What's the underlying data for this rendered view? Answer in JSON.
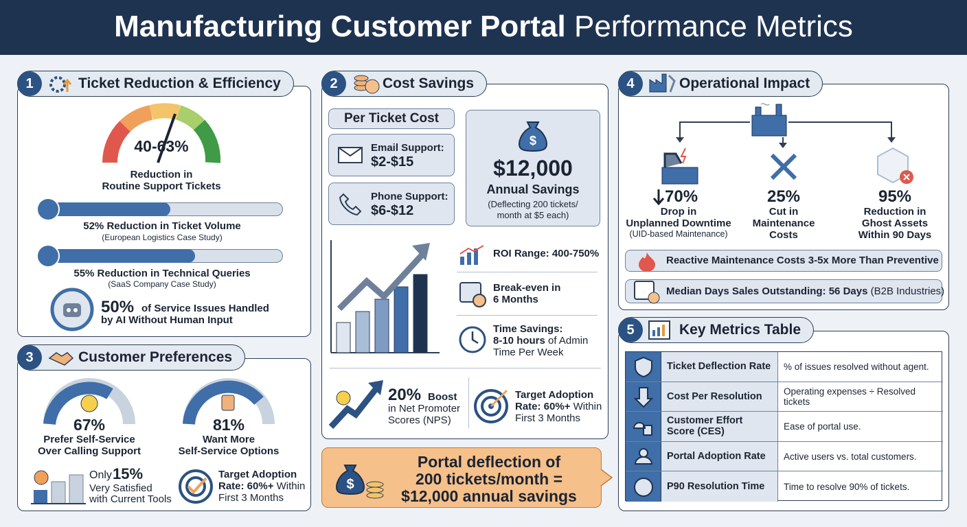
{
  "header": {
    "title_strong": "Manufacturing Customer Portal",
    "title_light": "Performance Metrics"
  },
  "ticket_reduction": {
    "number": "1",
    "title": "Ticket Reduction & Efficiency",
    "gauge_value": "40-63%",
    "gauge_label": [
      "Reduction in",
      "Routine Support Tickets"
    ],
    "stats": [
      {
        "headline": "52% Reduction in Ticket Volume",
        "source": "(European Logistics Case Study)"
      },
      {
        "headline": "55% Reduction in Technical Queries",
        "source": "(SaaS Company Case Study)"
      }
    ],
    "ai": {
      "value": "50%",
      "text_1": "of Service Issues Handled",
      "text_2": "by AI Without Human Input"
    }
  },
  "cost_savings": {
    "number": "2",
    "title": "Cost Savings",
    "per_ticket_title": "Per Ticket Cost",
    "email": {
      "label": "Email Support:",
      "value": "$2-$15"
    },
    "phone": {
      "label": "Phone Support:",
      "value": "$6-$12"
    },
    "annual": {
      "value": "$12,000",
      "label": "Annual Savings",
      "note": [
        "(Deflecting 200 tickets/",
        "month at $5 each)"
      ]
    },
    "roi": "ROI Range: 400-750%",
    "breakeven": [
      "Break-even in",
      "6 Months"
    ],
    "time": {
      "title": "Time Savings:",
      "value": "8-10 hours",
      "rest": "of Admin",
      "line3": "Time Per Week"
    },
    "nps": {
      "value": "20%",
      "word": "Boost",
      "rest": [
        "in Net Promoter",
        "Scores (NPS)"
      ]
    },
    "adoption": {
      "line1": "Target Adoption",
      "bold": "Rate: 60%+",
      "rest": "Within",
      "line3": "First 3 Months"
    }
  },
  "callout": [
    "Portal deflection of",
    "200 tickets/month =",
    "$12,000 annual savings"
  ],
  "customer_preferences": {
    "number": "3",
    "title": "Customer Preferences",
    "gauges": [
      {
        "value": "67%",
        "label": [
          "Prefer Self-Service",
          "Over Calling Support"
        ]
      },
      {
        "value": "81%",
        "label": [
          "Want More",
          "Self-Service Options"
        ]
      }
    ],
    "satisfied": {
      "prefix": "Only",
      "value": "15%",
      "rest": [
        "Very Satisfied",
        "with Current Tools"
      ]
    },
    "adoption": {
      "line1": "Target Adoption",
      "bold": "Rate: 60%+",
      "rest": "Within",
      "line3": "First 3 Months"
    }
  },
  "operational_impact": {
    "number": "4",
    "title": "Operational Impact",
    "items": [
      {
        "value": "70%",
        "label": [
          "Drop in",
          "Unplanned Downtime"
        ],
        "note": "(UID-based Maintenance)"
      },
      {
        "value": "25%",
        "label": [
          "Cut in",
          "Maintenance",
          "Costs"
        ]
      },
      {
        "value": "95%",
        "label": [
          "Reduction in",
          "Ghost Assets",
          "Within 90 Days"
        ]
      }
    ],
    "fact_1": "Reactive Maintenance Costs 3-5x More Than Preventive",
    "fact_2": {
      "text": "Median Days Sales Outstanding: 56 Days",
      "suffix": "(B2B Industries)"
    }
  },
  "metrics_table": {
    "number": "5",
    "title": "Key Metrics Table",
    "rows": [
      [
        "Ticket Deflection Rate",
        "% of issues resolved without agent."
      ],
      [
        "Cost Per Resolution",
        "Operating expenses ÷ Resolved tickets"
      ],
      [
        "Customer Effort Score (CES)",
        "Ease of portal use."
      ],
      [
        "Portal Adoption Rate",
        "Active users vs. total customers."
      ],
      [
        "P90 Resolution Time",
        "Time to resolve 90% of tickets."
      ]
    ]
  }
}
